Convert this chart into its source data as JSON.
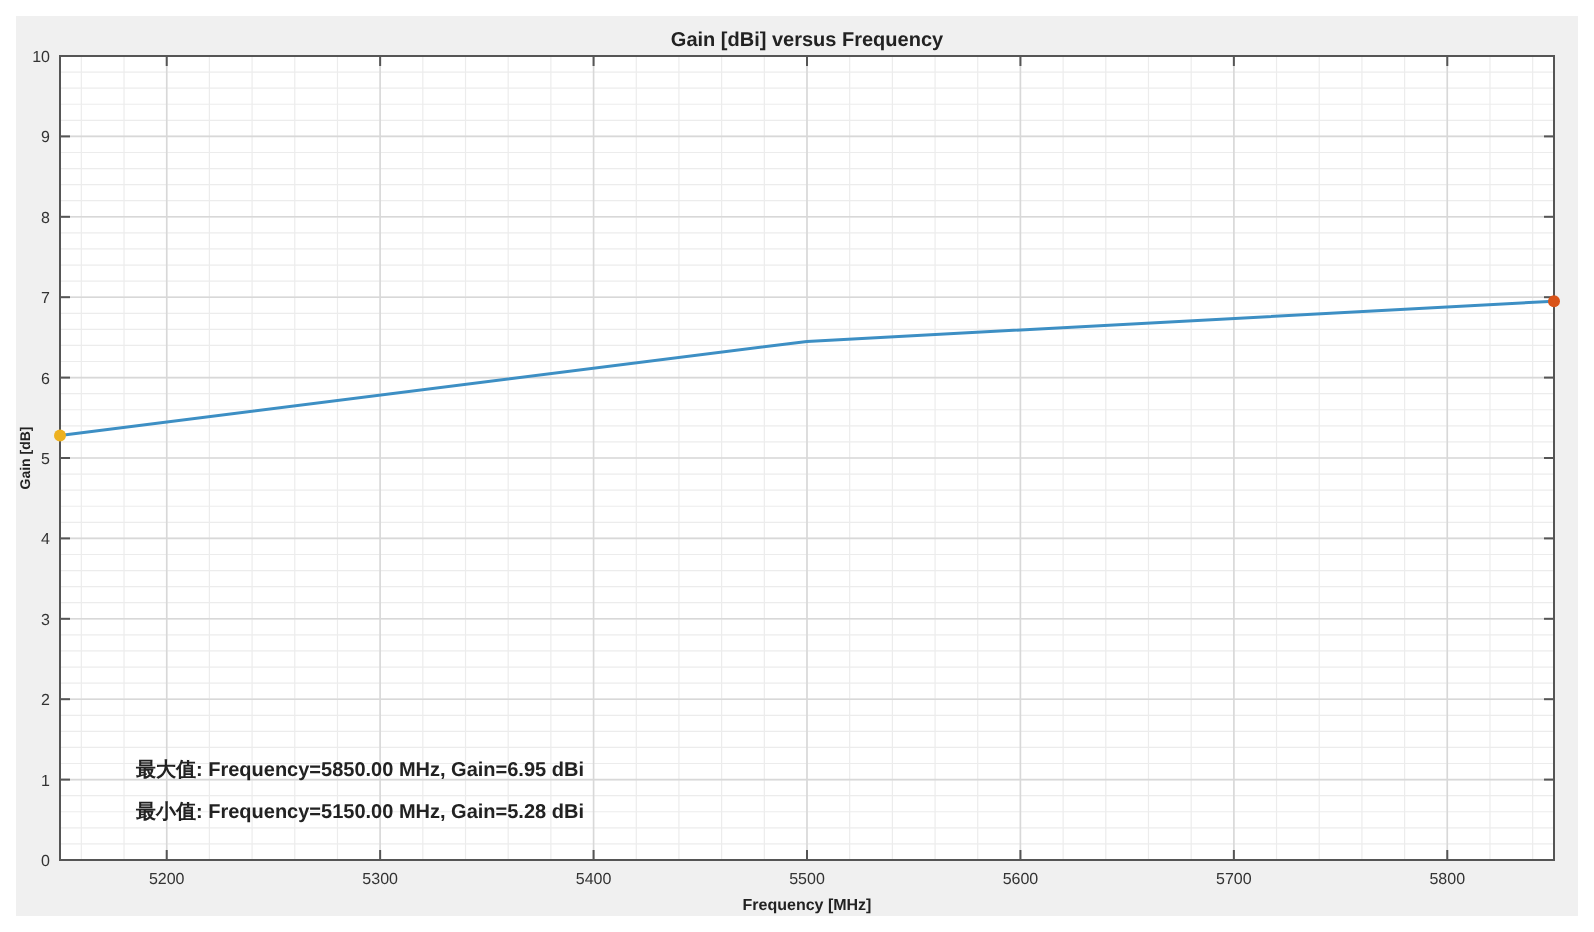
{
  "chart_data": {
    "type": "line",
    "title": "Gain [dBi] versus Frequency",
    "xlabel": "Frequency [MHz]",
    "ylabel": "Gain [dB]",
    "x": [
      5150,
      5500,
      5850
    ],
    "series": [
      {
        "color": "#3d8fc4",
        "values": [
          5.28,
          6.45,
          6.95
        ]
      },
      {
        "type": "scatter",
        "marker": "circle",
        "color": "#edb120",
        "x": [
          5150
        ],
        "values": [
          5.28
        ]
      },
      {
        "type": "scatter",
        "marker": "circle",
        "color": "#d95319",
        "x": [
          5850
        ],
        "values": [
          6.95
        ]
      }
    ],
    "xlim": [
      5150,
      5850
    ],
    "xticks": [
      5200,
      5300,
      5400,
      5500,
      5600,
      5700,
      5800
    ],
    "ylim": [
      0,
      10
    ],
    "yticks": [
      0,
      1,
      2,
      3,
      4,
      5,
      6,
      7,
      8,
      9,
      10
    ],
    "grid": true,
    "marker": "none",
    "line_style": "solid",
    "annotations": [
      "最大值: Frequency=5850.00 MHz, Gain=6.95 dBi",
      "最小值: Frequency=5150.00 MHz, Gain=5.28 dBi"
    ]
  }
}
